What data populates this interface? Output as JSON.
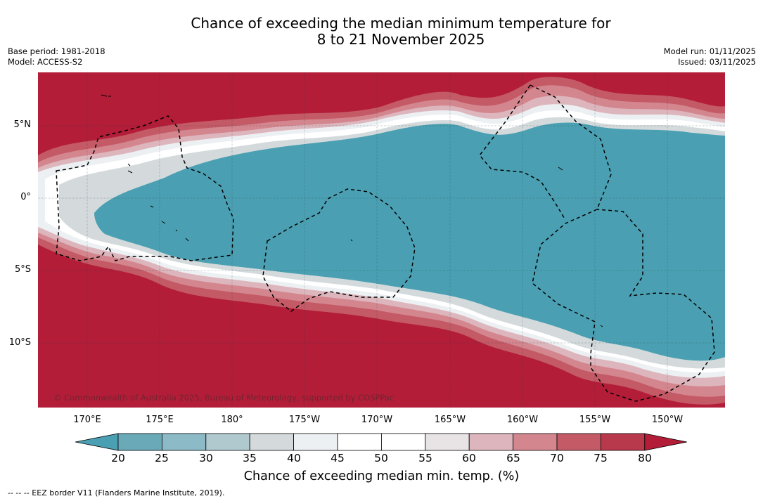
{
  "title": {
    "line1": "Chance of exceeding the median minimum temperature for",
    "line2": "8 to 21 November 2025"
  },
  "meta": {
    "base_period": "Base period: 1981-2018",
    "model": "Model: ACCESS-S2",
    "model_run": "Model run: 01/11/2025",
    "issued": "Issued: 03/11/2025"
  },
  "map": {
    "copyright": "© Commonwealth of Australia 2025, Bureau of Meteorology, supported by COSPPac",
    "lat_labels": [
      "5°N",
      "0°",
      "5°S",
      "10°S"
    ],
    "lon_labels": [
      "170°E",
      "175°E",
      "180°",
      "175°W",
      "170°W",
      "165°W",
      "160°W",
      "155°W",
      "150°W"
    ],
    "colors": {
      "high": "#b31d38",
      "low": "#4aa0b2"
    }
  },
  "colorbar": {
    "ticks": [
      "20",
      "25",
      "30",
      "35",
      "40",
      "45",
      "50",
      "55",
      "60",
      "65",
      "70",
      "75",
      "80"
    ],
    "label": "Chance of exceeding median min. temp. (%)",
    "colors": [
      "#4aa0b2",
      "#6aa9b8",
      "#8cbac6",
      "#b0c9cf",
      "#d4dadc",
      "#ecf0f2",
      "#ffffff",
      "#ffffff",
      "#e8e4e6",
      "#ddb6bd",
      "#d4868f",
      "#c35a66",
      "#b8394c",
      "#b31d38"
    ]
  },
  "legend": {
    "eez": "--  --  -- EEZ border V11 (Flanders Marine Institute, 2019)."
  }
}
